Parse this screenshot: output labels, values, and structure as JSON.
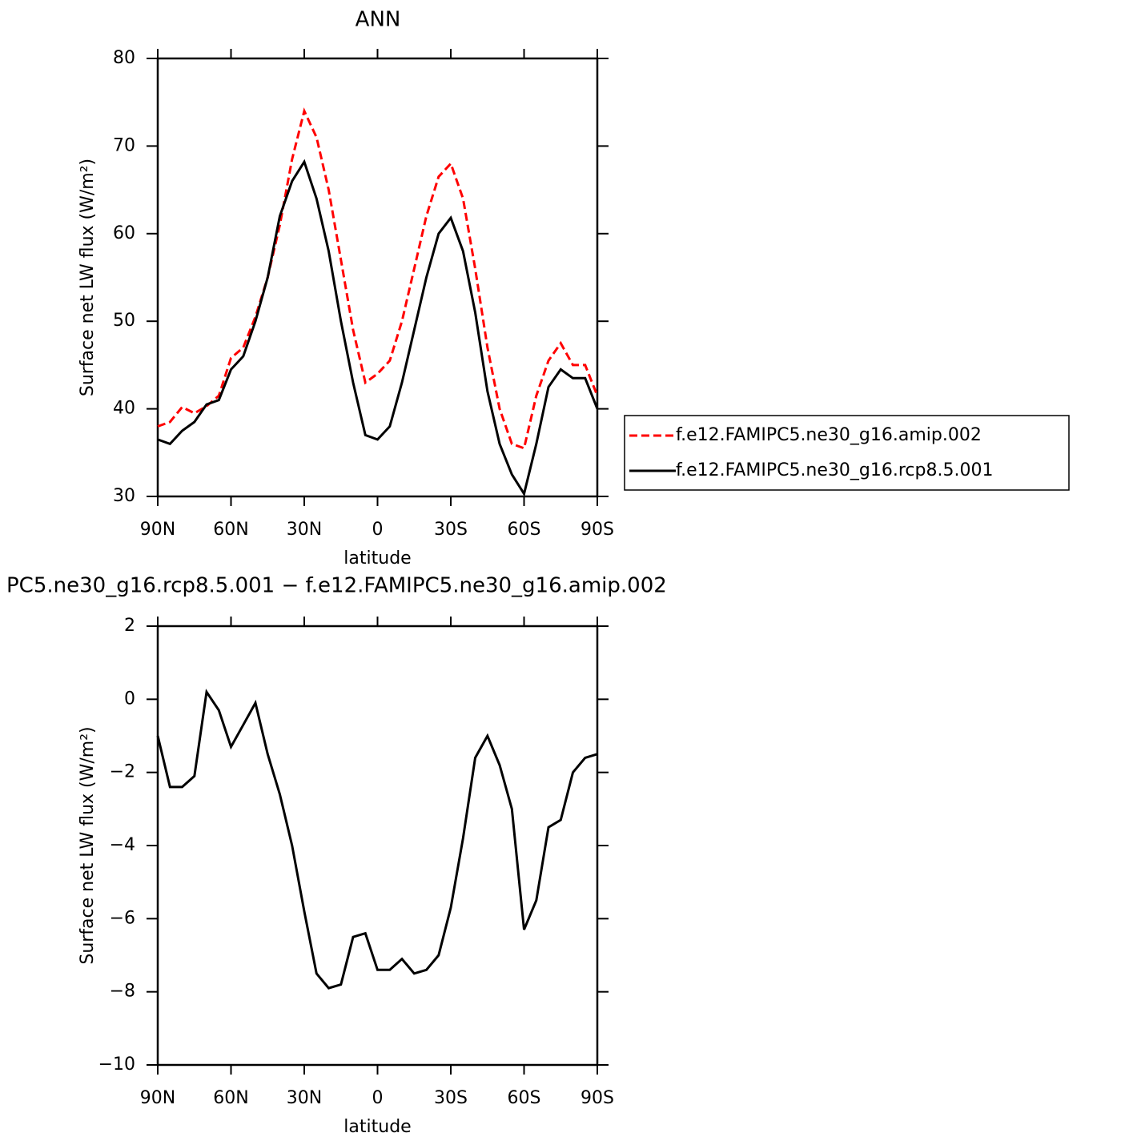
{
  "chart_data": [
    {
      "type": "line",
      "title": "ANN",
      "xlabel": "latitude",
      "ylabel": "Surface net LW flux (W/m²)",
      "x": [
        90,
        85,
        80,
        75,
        70,
        65,
        60,
        55,
        50,
        45,
        40,
        35,
        30,
        25,
        20,
        15,
        10,
        5,
        0,
        -5,
        -10,
        -15,
        -20,
        -25,
        -30,
        -35,
        -40,
        -45,
        -50,
        -55,
        -60,
        -65,
        -70,
        -75,
        -80,
        -85,
        -90
      ],
      "series": [
        {
          "name": "f.e12.FAMIPC5.ne30_g16.amip.002",
          "color": "#ff0000",
          "style": "dashed",
          "values": [
            38,
            38.5,
            40.2,
            39.5,
            40.3,
            41.5,
            45.8,
            47,
            50.5,
            55,
            61,
            68.5,
            74,
            71,
            65,
            57,
            49,
            43,
            44,
            45.5,
            50,
            56,
            62,
            66.5,
            68,
            64,
            56,
            47,
            40,
            36,
            35.5,
            41.5,
            45.5,
            47.5,
            45,
            45,
            41.5
          ]
        },
        {
          "name": "f.e12.FAMIPC5.ne30_g16.rcp8.5.001",
          "color": "#000000",
          "style": "solid",
          "values": [
            36.5,
            36,
            37.5,
            38.5,
            40.5,
            41,
            44.5,
            46,
            50,
            55,
            62,
            66,
            68.2,
            64,
            58,
            50,
            43,
            37,
            36.5,
            38,
            43,
            49,
            55,
            60,
            61.8,
            58,
            51,
            42,
            36,
            32.5,
            30.3,
            36,
            42.5,
            44.5,
            43.5,
            43.5,
            40
          ]
        }
      ],
      "legend": "right",
      "xlim": [
        90,
        -90
      ],
      "xticks": [
        {
          "value": 90,
          "label": "90N"
        },
        {
          "value": 60,
          "label": "60N"
        },
        {
          "value": 30,
          "label": "30N"
        },
        0,
        {
          "value": -30,
          "label": "30S"
        },
        {
          "value": -60,
          "label": "60S"
        },
        {
          "value": -90,
          "label": "90S"
        }
      ],
      "ylim": [
        30,
        80
      ],
      "yticks": [
        30,
        40,
        50,
        60,
        70,
        80
      ]
    },
    {
      "type": "line",
      "title": "PC5.ne30_g16.rcp8.5.001 − f.e12.FAMIPC5.ne30_g16.amip.002",
      "xlabel": "latitude",
      "ylabel": "Surface net LW flux (W/m²)",
      "x": [
        90,
        85,
        80,
        75,
        70,
        65,
        60,
        55,
        50,
        45,
        40,
        35,
        30,
        25,
        20,
        15,
        10,
        5,
        0,
        -5,
        -10,
        -15,
        -20,
        -25,
        -30,
        -35,
        -40,
        -45,
        -50,
        -55,
        -60,
        -65,
        -70,
        -75,
        -80,
        -85,
        -90
      ],
      "series": [
        {
          "color": "#000000",
          "style": "solid",
          "values": [
            -1,
            -2.4,
            -2.4,
            -2.1,
            0.2,
            -0.3,
            -1.3,
            -0.7,
            -0.1,
            -1.5,
            -2.6,
            -4,
            -5.8,
            -7.5,
            -7.9,
            -7.8,
            -6.5,
            -6.4,
            -7.4,
            -7.4,
            -7.1,
            -7.5,
            -7.4,
            -7,
            -5.7,
            -3.8,
            -1.6,
            -1,
            -1.8,
            -3,
            -6.3,
            -5.5,
            -3.5,
            -3.3,
            -2,
            -1.6,
            -1.5
          ]
        }
      ],
      "xlim": [
        90,
        -90
      ],
      "xticks": [
        {
          "value": 90,
          "label": "90N"
        },
        {
          "value": 60,
          "label": "60N"
        },
        {
          "value": 30,
          "label": "30N"
        },
        0,
        {
          "value": -30,
          "label": "30S"
        },
        {
          "value": -60,
          "label": "60S"
        },
        {
          "value": -90,
          "label": "90S"
        }
      ],
      "ylim": [
        -10,
        2
      ],
      "yticks": [
        {
          "value": -10,
          "label": "−10"
        },
        {
          "value": -8,
          "label": "−8"
        },
        {
          "value": -6,
          "label": "−6"
        },
        {
          "value": -4,
          "label": "−4"
        },
        {
          "value": -2,
          "label": "−2"
        },
        0,
        2
      ]
    }
  ]
}
